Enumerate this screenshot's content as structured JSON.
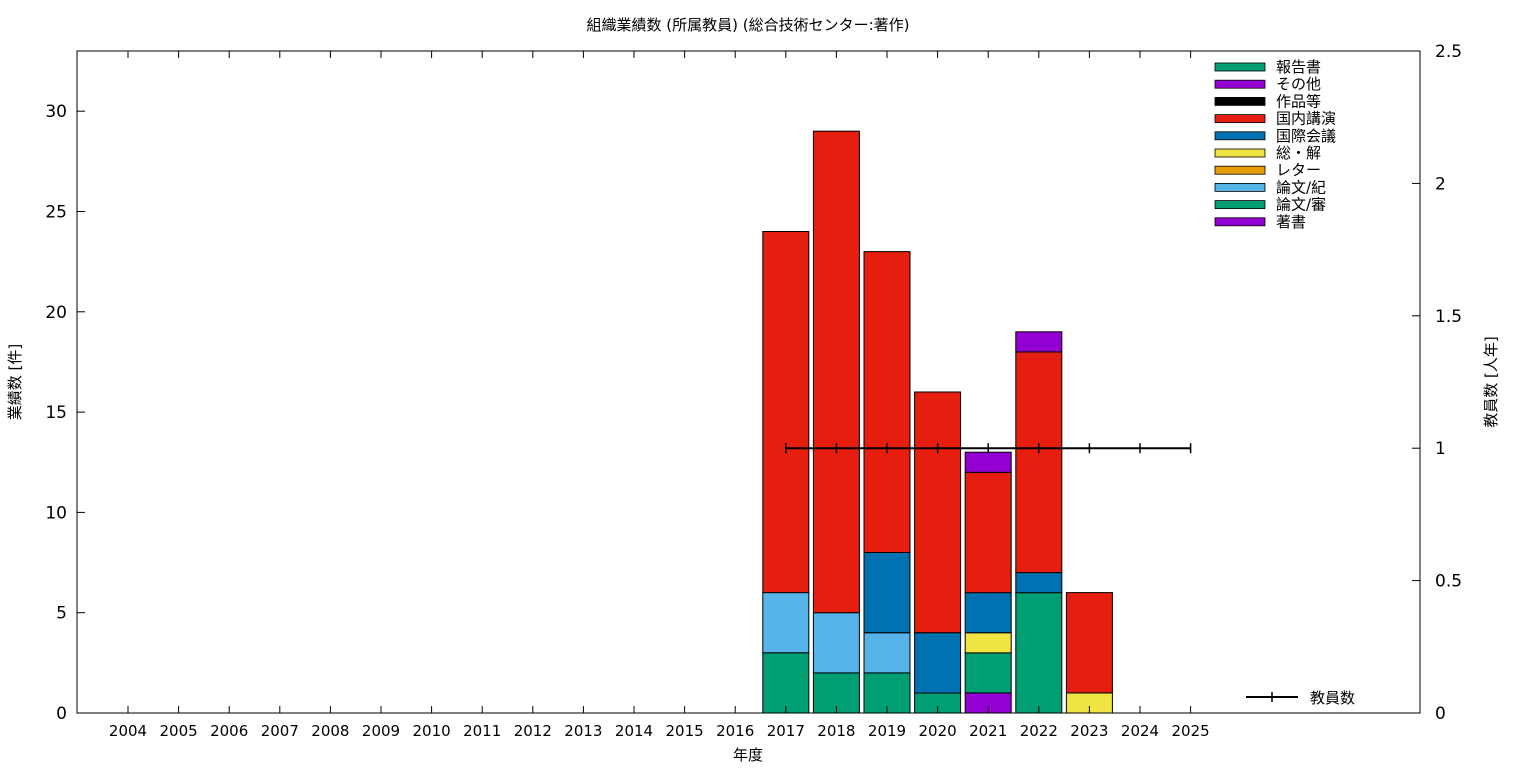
{
  "chart_data": {
    "type": "bar",
    "stacked": true,
    "title": "組織業績数 (所属教員) (総合技術センター:著作)",
    "xlabel": "年度",
    "ylabel": "業績数 [件]",
    "y2label": "教員数 [人年]",
    "categories": [
      "2004",
      "2005",
      "2006",
      "2007",
      "2008",
      "2009",
      "2010",
      "2011",
      "2012",
      "2013",
      "2014",
      "2015",
      "2016",
      "2017",
      "2018",
      "2019",
      "2020",
      "2021",
      "2022",
      "2023",
      "2024",
      "2025"
    ],
    "ylim": [
      0,
      33
    ],
    "yticks": [
      0,
      5,
      10,
      15,
      20,
      25,
      30
    ],
    "y2lim": [
      0,
      2.5
    ],
    "y2ticks": [
      "0",
      "0.5",
      "1",
      "1.5",
      "2",
      "2.5"
    ],
    "grid": false,
    "legend_position": "top-right",
    "series": [
      {
        "name": "著書",
        "color": "#9400d3",
        "values": [
          0,
          0,
          0,
          0,
          0,
          0,
          0,
          0,
          0,
          0,
          0,
          0,
          0,
          0,
          0,
          0,
          0,
          1,
          0,
          0,
          0,
          0
        ]
      },
      {
        "name": "論文/審",
        "color": "#009e73",
        "values": [
          0,
          0,
          0,
          0,
          0,
          0,
          0,
          0,
          0,
          0,
          0,
          0,
          0,
          3,
          2,
          2,
          1,
          2,
          6,
          0,
          0,
          0
        ]
      },
      {
        "name": "論文/紀",
        "color": "#56b4e9",
        "values": [
          0,
          0,
          0,
          0,
          0,
          0,
          0,
          0,
          0,
          0,
          0,
          0,
          0,
          3,
          3,
          2,
          0,
          0,
          0,
          0,
          0,
          0
        ]
      },
      {
        "name": "レター",
        "color": "#e69f00",
        "values": [
          0,
          0,
          0,
          0,
          0,
          0,
          0,
          0,
          0,
          0,
          0,
          0,
          0,
          0,
          0,
          0,
          0,
          0,
          0,
          0,
          0,
          0
        ]
      },
      {
        "name": "総・解",
        "color": "#f0e442",
        "values": [
          0,
          0,
          0,
          0,
          0,
          0,
          0,
          0,
          0,
          0,
          0,
          0,
          0,
          0,
          0,
          0,
          0,
          1,
          0,
          1,
          0,
          0
        ]
      },
      {
        "name": "国際会議",
        "color": "#0072b2",
        "values": [
          0,
          0,
          0,
          0,
          0,
          0,
          0,
          0,
          0,
          0,
          0,
          0,
          0,
          0,
          0,
          4,
          3,
          2,
          1,
          0,
          0,
          0
        ]
      },
      {
        "name": "国内講演",
        "color": "#e51e10",
        "values": [
          0,
          0,
          0,
          0,
          0,
          0,
          0,
          0,
          0,
          0,
          0,
          0,
          0,
          18,
          24,
          15,
          12,
          6,
          11,
          5,
          0,
          0
        ]
      },
      {
        "name": "作品等",
        "color": "#000000",
        "values": [
          0,
          0,
          0,
          0,
          0,
          0,
          0,
          0,
          0,
          0,
          0,
          0,
          0,
          0,
          0,
          0,
          0,
          0,
          0,
          0,
          0,
          0
        ]
      },
      {
        "name": "その他",
        "color": "#9400d3",
        "values": [
          0,
          0,
          0,
          0,
          0,
          0,
          0,
          0,
          0,
          0,
          0,
          0,
          0,
          0,
          0,
          0,
          0,
          1,
          1,
          0,
          0,
          0
        ]
      },
      {
        "name": "報告書",
        "color": "#009e73",
        "values": [
          0,
          0,
          0,
          0,
          0,
          0,
          0,
          0,
          0,
          0,
          0,
          0,
          0,
          0,
          0,
          0,
          0,
          0,
          0,
          0,
          0,
          0
        ]
      }
    ],
    "line_series": {
      "name": "教員数",
      "axis": "y2",
      "color": "#000000",
      "x": [
        "2017",
        "2018",
        "2019",
        "2020",
        "2021",
        "2022",
        "2023",
        "2024",
        "2025"
      ],
      "values": [
        1,
        1,
        1,
        1,
        1,
        1,
        1,
        1,
        1
      ]
    }
  }
}
